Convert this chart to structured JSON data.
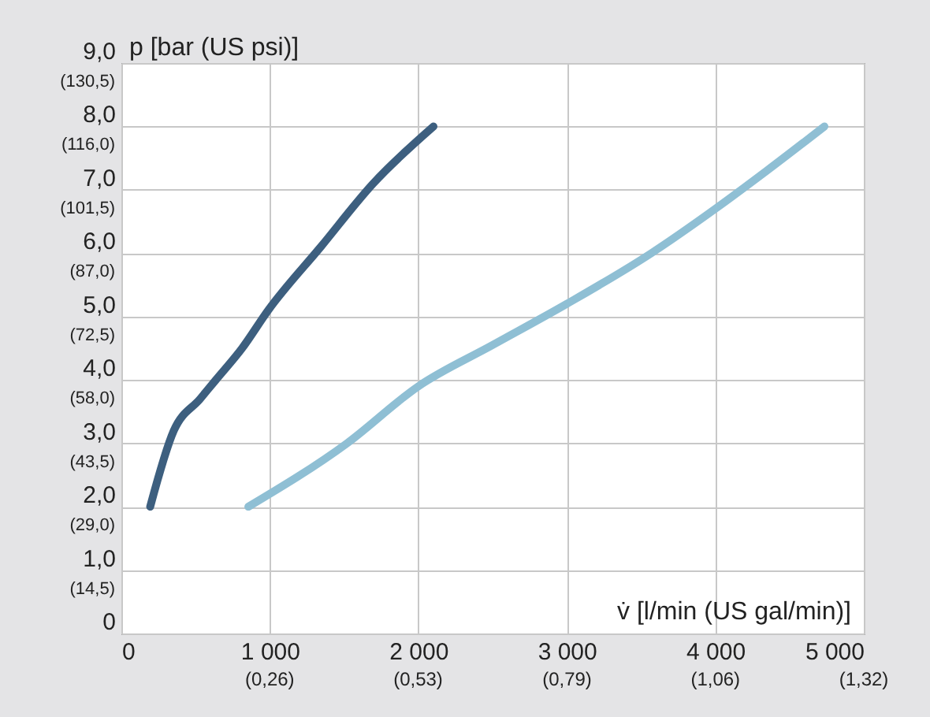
{
  "chart_data": {
    "type": "line",
    "xlabel": "v̇ [l/min (US gal/min)]",
    "ylabel": "p [bar (US psi)]",
    "xlim": [
      0,
      5000
    ],
    "ylim": [
      0,
      9
    ],
    "xticks": [
      0,
      {
        "value": 1000,
        "label": "1 000"
      },
      {
        "value": 2000,
        "label": "2 000"
      },
      {
        "value": 3000,
        "label": "3 000"
      },
      {
        "value": 4000,
        "label": "4 000"
      },
      {
        "value": 5000,
        "label": "5 000"
      }
    ],
    "yticks": [
      0,
      {
        "value": 1,
        "label": "1,0"
      },
      {
        "value": 2,
        "label": "2,0"
      },
      {
        "value": 3,
        "label": "3,0"
      },
      {
        "value": 4,
        "label": "4,0"
      },
      {
        "value": 5,
        "label": "5,0"
      },
      {
        "value": 6,
        "label": "6,0"
      },
      {
        "value": 7,
        "label": "7,0"
      },
      {
        "value": 8,
        "label": "8,0"
      },
      {
        "value": 9,
        "label": "9,0"
      }
    ],
    "x2lim": [
      0,
      1.321
    ],
    "x2ticks": [
      {
        "value": 0.264,
        "label": "(0,26)"
      },
      {
        "value": 0.528,
        "label": "(0,53)"
      },
      {
        "value": 0.793,
        "label": "(0,79)"
      },
      {
        "value": 1.057,
        "label": "(1,06)"
      },
      {
        "value": 1.321,
        "label": "(1,32)"
      }
    ],
    "y2lim": [
      0,
      130.5
    ],
    "y2ticks": [
      {
        "value": 14.5,
        "label": "(14,5)"
      },
      {
        "value": 29,
        "label": "(29,0)"
      },
      {
        "value": 43.5,
        "label": "(43,5)"
      },
      {
        "value": 58,
        "label": "(58,0)"
      },
      {
        "value": 72.5,
        "label": "(72,5)"
      },
      {
        "value": 87,
        "label": "(87,0)"
      },
      {
        "value": 101.5,
        "label": "(101,5)"
      },
      {
        "value": 116,
        "label": "(116,0)"
      },
      {
        "value": 130.5,
        "label": "(130,5)"
      }
    ],
    "grid": true,
    "marker": "none",
    "line_style": "solid",
    "series": [
      {
        "color": "#3d5f7f",
        "x": [
          194,
          353,
          530,
          636,
          813,
          989,
          1343,
          1696,
          2102
        ],
        "values": [
          2,
          3.2,
          3.7,
          4.0,
          4.5,
          5.1,
          6.1,
          7.1,
          8.0
        ]
      },
      {
        "color": "#8fbfd4",
        "x": [
          855,
          1519,
          2000,
          2500,
          3000,
          3569,
          4000,
          4346,
          4735
        ],
        "values": [
          2,
          3.0,
          3.9,
          4.55,
          5.2,
          6.0,
          6.7,
          7.3,
          8.0
        ]
      }
    ]
  }
}
